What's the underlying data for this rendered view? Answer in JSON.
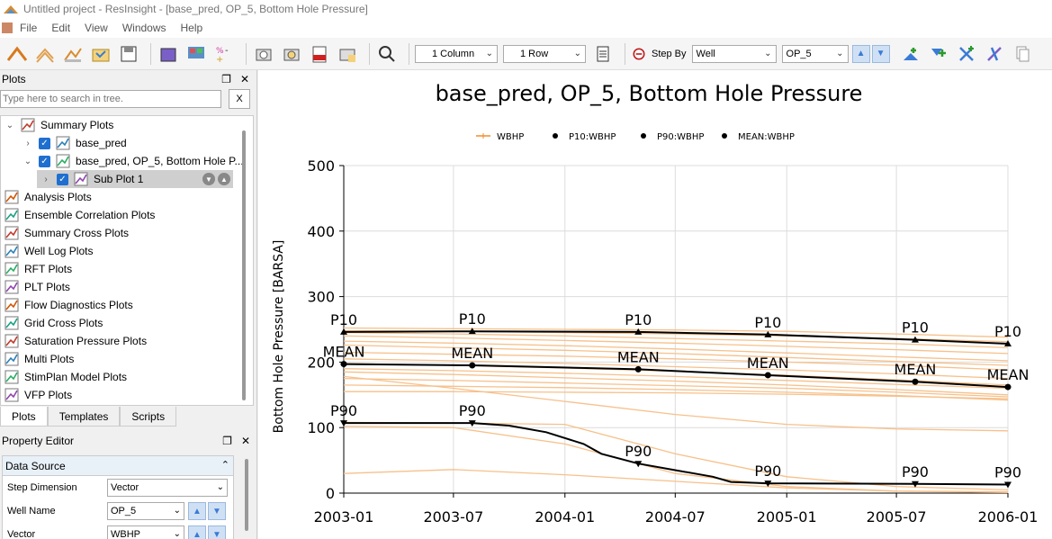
{
  "window": {
    "title": "Untitled project - ResInsight - [base_pred, OP_5, Bottom Hole Pressure]"
  },
  "menu": {
    "items": [
      "File",
      "Edit",
      "View",
      "Windows",
      "Help"
    ]
  },
  "toolbar": {
    "columns": "1 Column",
    "rows": "1 Row",
    "step_by_label": "Step By",
    "step_by_value": "Well",
    "well_value": "OP_5"
  },
  "plots_panel": {
    "title": "Plots",
    "search_placeholder": "Type here to search in tree.",
    "clear_label": "X",
    "tree": [
      {
        "label": "Summary Plots",
        "level": 0,
        "expander": "v",
        "checkbox": false
      },
      {
        "label": "base_pred",
        "level": 1,
        "expander": ">",
        "checkbox": true
      },
      {
        "label": "base_pred, OP_5, Bottom Hole P...",
        "level": 1,
        "expander": "v",
        "checkbox": true
      },
      {
        "label": "Sub Plot 1",
        "level": 2,
        "expander": ">",
        "checkbox": true,
        "selected": true
      },
      {
        "label": "Analysis Plots",
        "level": 0
      },
      {
        "label": "Ensemble Correlation Plots",
        "level": 0
      },
      {
        "label": "Summary Cross Plots",
        "level": 0
      },
      {
        "label": "Well Log Plots",
        "level": 0
      },
      {
        "label": "RFT Plots",
        "level": 0
      },
      {
        "label": "PLT Plots",
        "level": 0
      },
      {
        "label": "Flow Diagnostics Plots",
        "level": 0
      },
      {
        "label": "Grid Cross Plots",
        "level": 0
      },
      {
        "label": "Saturation Pressure Plots",
        "level": 0
      },
      {
        "label": "Multi Plots",
        "level": 0
      },
      {
        "label": "StimPlan Model Plots",
        "level": 0
      },
      {
        "label": "VFP Plots",
        "level": 0
      }
    ],
    "tabs": [
      "Plots",
      "Templates",
      "Scripts"
    ]
  },
  "property_editor": {
    "title": "Property Editor",
    "group": "Data Source",
    "rows": [
      {
        "label": "Step Dimension",
        "value": "Vector"
      },
      {
        "label": "Well Name",
        "value": "OP_5"
      },
      {
        "label": "Vector",
        "value": "WBHP"
      }
    ]
  },
  "chart_data": {
    "type": "line",
    "title": "base_pred, OP_5, Bottom Hole Pressure",
    "ylabel": "Bottom Hole Pressure [BARSA]",
    "xlabel": "",
    "ylim": [
      0,
      500
    ],
    "yticks": [
      0,
      100,
      200,
      300,
      400,
      500
    ],
    "xticks": [
      "2003-01",
      "2003-07",
      "2004-01",
      "2004-07",
      "2005-01",
      "2005-07",
      "2006-01"
    ],
    "grid": true,
    "legend": [
      {
        "name": "WBHP",
        "color": "#f28c28"
      },
      {
        "name": "P10:WBHP",
        "color": "#000000"
      },
      {
        "name": "P90:WBHP",
        "color": "#000000"
      },
      {
        "name": "MEAN:WBHP",
        "color": "#000000"
      }
    ],
    "ensemble_color": "#f7c08a",
    "ensemble_x": [
      "2003-01",
      "2003-07",
      "2004-01",
      "2004-07",
      "2005-01",
      "2005-07",
      "2006-01"
    ],
    "ensemble": [
      [
        252,
        251,
        250,
        249,
        247,
        243,
        238
      ],
      [
        248,
        247,
        245,
        243,
        240,
        236,
        231
      ],
      [
        245,
        243,
        240,
        236,
        232,
        228,
        222
      ],
      [
        240,
        237,
        233,
        229,
        224,
        219,
        213
      ],
      [
        232,
        229,
        225,
        220,
        214,
        208,
        202
      ],
      [
        226,
        222,
        218,
        213,
        207,
        201,
        195
      ],
      [
        215,
        212,
        209,
        205,
        200,
        195,
        188
      ],
      [
        205,
        202,
        198,
        193,
        188,
        182,
        175
      ],
      [
        198,
        195,
        191,
        186,
        180,
        173,
        165
      ],
      [
        190,
        187,
        183,
        178,
        172,
        166,
        160
      ],
      [
        185,
        181,
        176,
        171,
        165,
        158,
        150
      ],
      [
        175,
        172,
        168,
        164,
        160,
        154,
        147
      ],
      [
        165,
        163,
        161,
        158,
        154,
        149,
        142
      ],
      [
        155,
        155,
        154,
        153,
        151,
        148,
        144
      ],
      [
        178,
        160,
        140,
        120,
        105,
        98,
        95
      ],
      [
        108,
        107,
        105,
        60,
        25,
        10,
        5
      ],
      [
        102,
        100,
        75,
        30,
        10,
        3,
        1
      ],
      [
        30,
        36,
        28,
        18,
        8,
        3,
        2
      ]
    ],
    "stats": [
      {
        "name": "P10",
        "x": [
          "2003-01",
          "2003-08",
          "2004-05",
          "2004-12",
          "2005-08",
          "2006-01"
        ],
        "values": [
          246,
          247,
          246,
          242,
          234,
          228
        ]
      },
      {
        "name": "MEAN",
        "x": [
          "2003-01",
          "2003-08",
          "2004-05",
          "2004-12",
          "2005-08",
          "2006-01"
        ],
        "values": [
          197,
          195,
          189,
          180,
          170,
          162
        ]
      },
      {
        "name": "P90",
        "x": [
          "2003-01",
          "2003-08",
          "2004-05",
          "2004-12",
          "2005-08",
          "2006-01"
        ],
        "values": [
          107,
          107,
          45,
          15,
          14,
          13
        ]
      }
    ],
    "p90_curve_x": [
      "2003-01",
      "2003-08",
      "2003-10",
      "2003-12",
      "2004-02",
      "2004-03",
      "2004-05",
      "2004-07",
      "2004-09",
      "2004-10",
      "2004-12",
      "2005-08",
      "2006-01"
    ],
    "p90_curve_values": [
      107,
      107,
      103,
      93,
      75,
      60,
      45,
      35,
      25,
      17,
      15,
      14,
      13
    ]
  }
}
